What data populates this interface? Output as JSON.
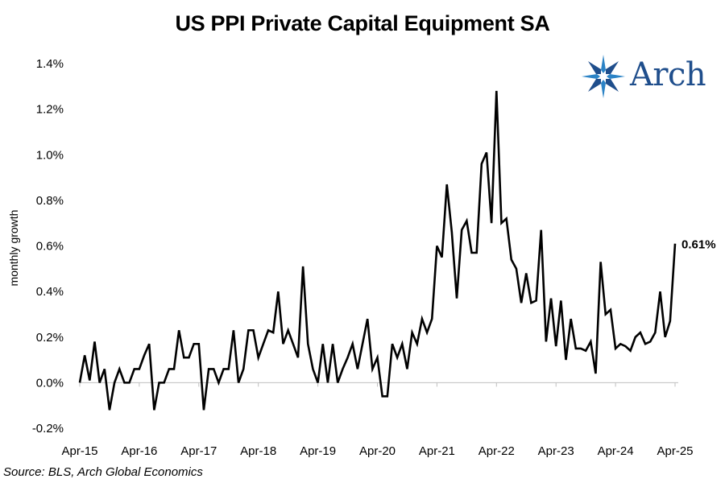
{
  "chart_data": {
    "type": "line",
    "title": "US PPI Private Capital Equipment SA",
    "xlabel": "",
    "ylabel": "monthly growth",
    "ylim": [
      -0.2,
      1.4
    ],
    "ytick_values": [
      -0.2,
      0.0,
      0.2,
      0.4,
      0.6,
      0.8,
      1.0,
      1.2,
      1.4
    ],
    "ytick_labels": [
      "-0.2%",
      "0.0%",
      "0.2%",
      "0.4%",
      "0.6%",
      "0.8%",
      "1.0%",
      "1.2%",
      "1.4%"
    ],
    "xtick_labels": [
      "Apr-15",
      "Apr-16",
      "Apr-17",
      "Apr-18",
      "Apr-19",
      "Apr-20",
      "Apr-21",
      "Apr-22",
      "Apr-23",
      "Apr-24",
      "Apr-25"
    ],
    "x_start": "Apr-15",
    "x_end": "Apr-25",
    "grid": false,
    "legend": "none",
    "end_label": "0.61%",
    "series": [
      {
        "color": "#000000",
        "values": [
          0.0,
          0.12,
          0.01,
          0.18,
          0.0,
          0.06,
          -0.12,
          0.0,
          0.06,
          0.0,
          0.0,
          0.06,
          0.06,
          0.12,
          0.17,
          -0.12,
          0.0,
          0.0,
          0.06,
          0.06,
          0.23,
          0.11,
          0.11,
          0.17,
          0.17,
          -0.12,
          0.06,
          0.06,
          0.0,
          0.06,
          0.06,
          0.23,
          0.0,
          0.06,
          0.23,
          0.23,
          0.11,
          0.17,
          0.23,
          0.22,
          0.4,
          0.17,
          0.23,
          0.17,
          0.11,
          0.51,
          0.17,
          0.06,
          0.0,
          0.17,
          0.0,
          0.17,
          0.0,
          0.06,
          0.11,
          0.17,
          0.06,
          0.17,
          0.28,
          0.06,
          0.11,
          -0.06,
          -0.06,
          0.17,
          0.11,
          0.17,
          0.06,
          0.22,
          0.17,
          0.28,
          0.22,
          0.28,
          0.6,
          0.55,
          0.87,
          0.66,
          0.37,
          0.67,
          0.71,
          0.57,
          0.57,
          0.96,
          1.01,
          0.7,
          1.28,
          0.7,
          0.72,
          0.54,
          0.5,
          0.35,
          0.48,
          0.35,
          0.36,
          0.67,
          0.18,
          0.37,
          0.16,
          0.36,
          0.1,
          0.28,
          0.15,
          0.15,
          0.14,
          0.18,
          0.04,
          0.53,
          0.3,
          0.32,
          0.15,
          0.17,
          0.16,
          0.14,
          0.2,
          0.22,
          0.17,
          0.18,
          0.22,
          0.4,
          0.2,
          0.27,
          0.61
        ]
      }
    ]
  }
}
